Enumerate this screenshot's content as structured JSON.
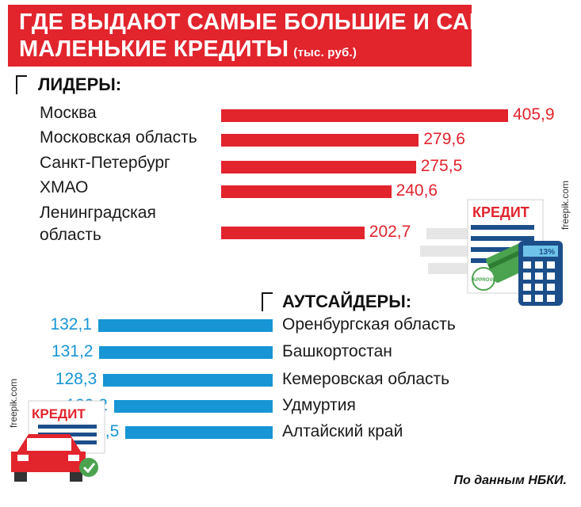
{
  "title": {
    "line1": "ГДЕ ВЫДАЮТ САМЫЕ БОЛЬШИЕ И САМЫЕ",
    "line2": "МАЛЕНЬКИЕ КРЕДИТЫ",
    "unit": "(тыс. руб.)"
  },
  "leaders_heading": "ЛИДЕРЫ:",
  "outsiders_heading": "АУТСАЙДЕРЫ:",
  "source": "По данным НБКИ.",
  "credits": {
    "top_right": "freepik.com",
    "bottom_left": "freepik.com"
  },
  "illustrations": {
    "calculator_card": {
      "label": "КРЕДИТ",
      "percent": "13%",
      "stamp": "APPROVED",
      "icon": "calculator-credit-card-icon"
    },
    "car": {
      "label": "КРЕДИТ",
      "icon": "car-loan-icon"
    }
  },
  "colors": {
    "red": "#e2242d",
    "blue": "#1795d4",
    "dark_blue": "#1c4f8a"
  },
  "chart_data": [
    {
      "type": "bar",
      "orientation": "horizontal",
      "title": "ЛИДЕРЫ:",
      "categories": [
        "Москва",
        "Московская область",
        "Санкт-Петербург",
        "ХМАО",
        "Ленинградская область"
      ],
      "category_lines": [
        [
          "Москва"
        ],
        [
          "Московская область"
        ],
        [
          "Санкт-Петербург"
        ],
        [
          "ХМАО"
        ],
        [
          "Ленинградская",
          "область"
        ]
      ],
      "values": [
        405.9,
        279.6,
        275.5,
        240.6,
        202.7
      ],
      "value_labels": [
        "405,9",
        "279,6",
        "275,5",
        "240,6",
        "202,7"
      ],
      "color": "#e2242d"
    },
    {
      "type": "bar",
      "orientation": "horizontal",
      "title": "АУТСАЙДЕРЫ:",
      "categories": [
        "Оренбургская область",
        "Башкортостан",
        "Кемеровская область",
        "Удмуртия",
        "Алтайский край"
      ],
      "values": [
        132.1,
        131.2,
        128.3,
        120.2,
        111.5
      ],
      "value_labels": [
        "132,1",
        "131,2",
        "128,3",
        "120,2",
        "111,5"
      ],
      "color": "#1795d4"
    }
  ]
}
